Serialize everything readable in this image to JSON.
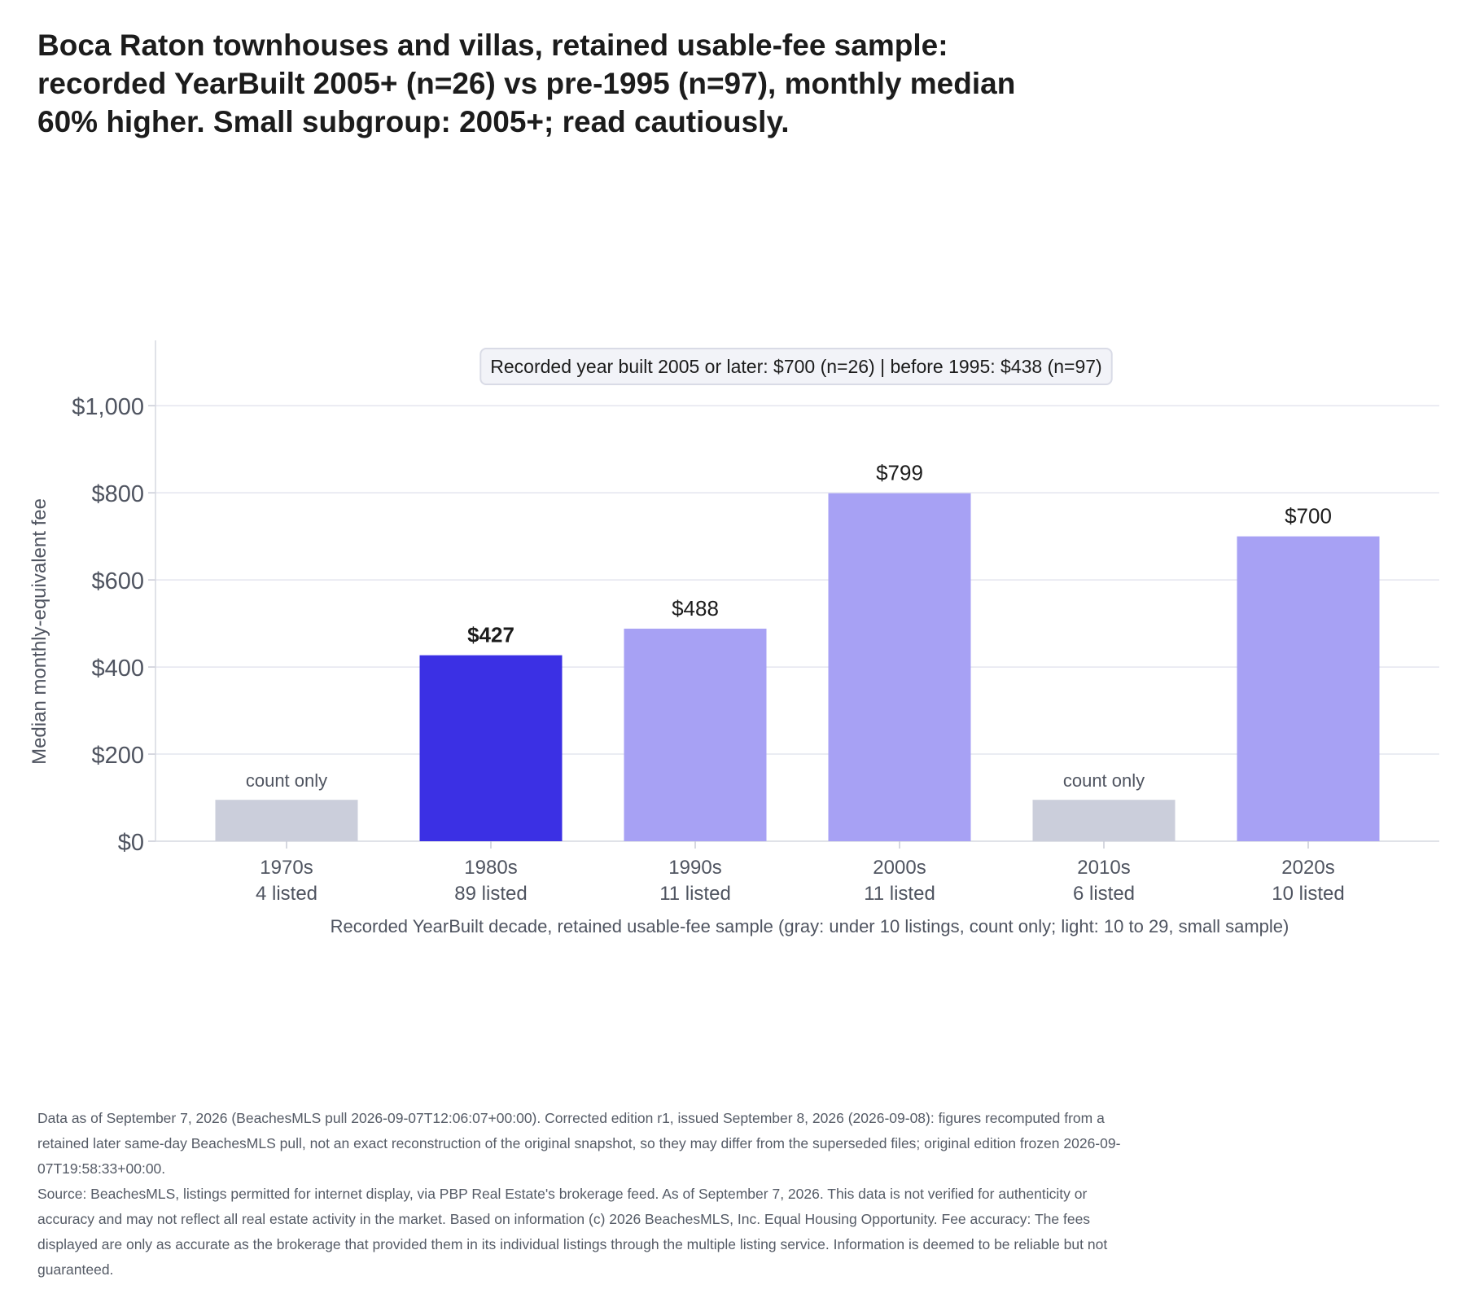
{
  "title_lines": [
    "Boca Raton townhouses and villas, retained usable-fee sample:",
    "recorded YearBuilt 2005+ (n=26) vs pre-1995 (n=97), monthly median",
    "60% higher. Small subgroup: 2005+; read cautiously."
  ],
  "footer": {
    "line1": "Data as of September 7, 2026 (BeachesMLS pull 2026-09-07T12:06:07+00:00). Corrected edition r1, issued September 8, 2026 (2026-09-08): figures recomputed from a retained later same-day BeachesMLS pull, not an exact reconstruction of the original snapshot, so they may differ from the superseded files; original edition frozen 2026-09-07T19:58:33+00:00.",
    "line2": "Source: BeachesMLS, listings permitted for internet display, via PBP Real Estate's brokerage feed. As of September 7, 2026. This data is not verified for authenticity or accuracy and may not reflect all real estate activity in the market. Based on information (c) 2026 BeachesMLS, Inc. Equal Housing Opportunity. Fee accuracy: The fees displayed are only as accurate as the brokerage that provided them in its individual listings through the multiple listing service. Information is deemed to be reliable but not guaranteed."
  },
  "colors": {
    "highlight": "#3b30e4",
    "small_sample": "#a7a1f4",
    "count_only": "#cbcedb",
    "grid": "#e4e5ef",
    "axis_text": "#4f5460"
  },
  "chart_data": {
    "type": "bar",
    "ylabel": "Median monthly-equivalent fee",
    "xlabel": "Recorded YearBuilt decade, retained usable-fee sample (gray: under 10 listings, count only; light: 10 to 29, small sample)",
    "ylim": [
      0,
      1150
    ],
    "yticks": [
      0,
      200,
      400,
      600,
      800,
      1000
    ],
    "ytick_labels": [
      "$0",
      "$200",
      "$400",
      "$600",
      "$800",
      "$1,000"
    ],
    "grid": true,
    "annotation": "Recorded year built 2005 or later: $700 (n=26)   |   before 1995: $438 (n=97)",
    "categories": [
      "1970s",
      "1980s",
      "1990s",
      "2000s",
      "2010s",
      "2020s"
    ],
    "counts": [
      "4 listed",
      "89 listed",
      "11 listed",
      "11 listed",
      "6 listed",
      "10 listed"
    ],
    "values": [
      null,
      427,
      488,
      799,
      null,
      700
    ],
    "bar_labels": [
      "count only",
      "$427",
      "$488",
      "$799",
      "count only",
      "$700"
    ],
    "bar_kind": [
      "count_only",
      "highlight",
      "small_sample",
      "small_sample",
      "count_only",
      "small_sample"
    ]
  }
}
